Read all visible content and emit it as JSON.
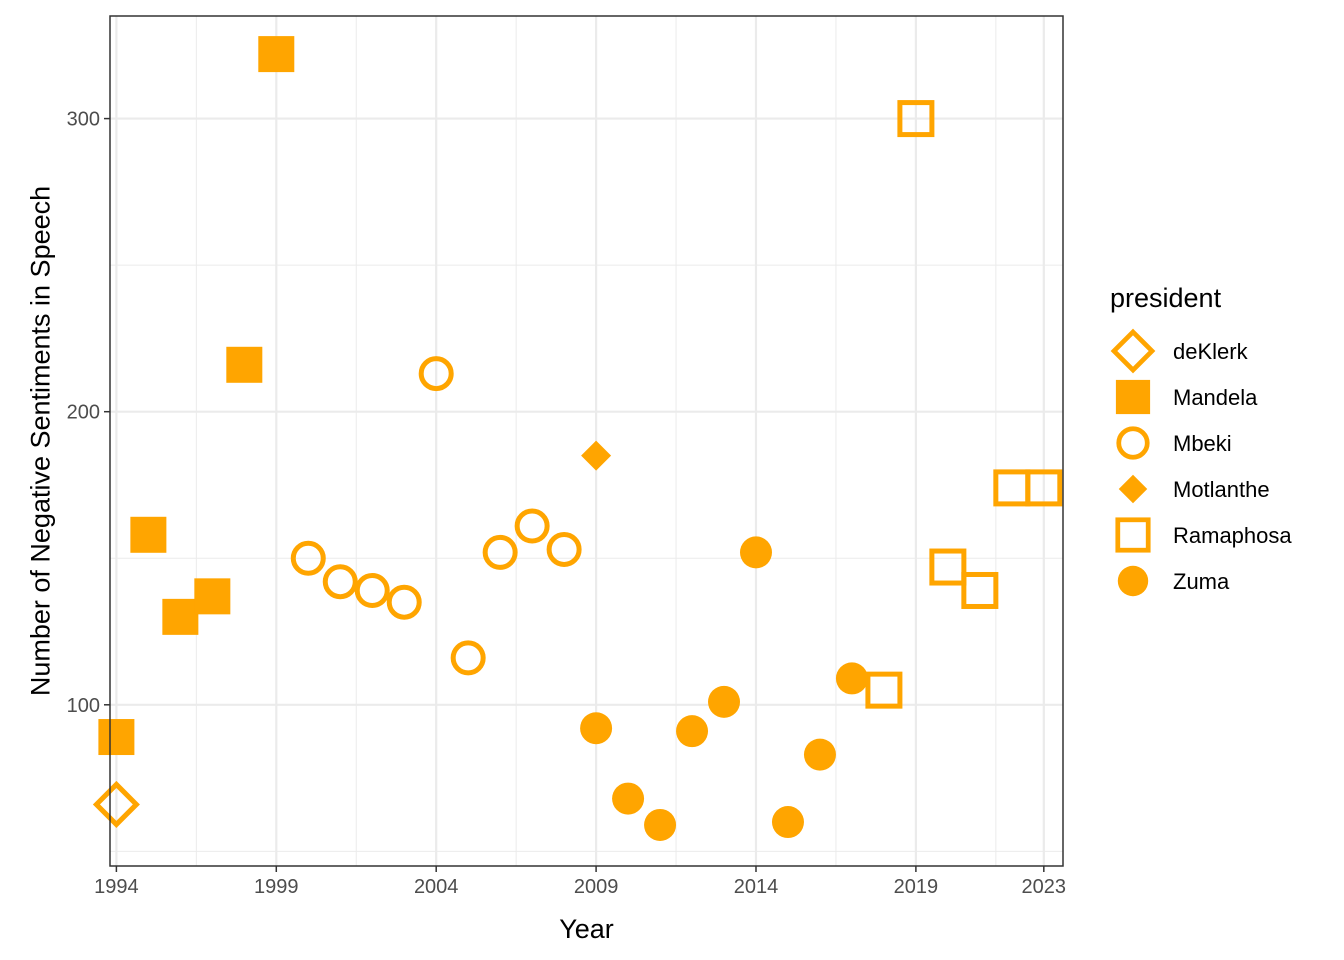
{
  "chart_data": {
    "type": "scatter",
    "xlabel": "Year",
    "ylabel": "Number of Negative Sentiments in Speech",
    "xlim": [
      1993.8,
      2023.6
    ],
    "ylim": [
      45,
      335
    ],
    "x_ticks": [
      1994,
      1999,
      2004,
      2009,
      2014,
      2019,
      2023
    ],
    "y_ticks": [
      100,
      200,
      300
    ],
    "grid": true,
    "marker_color": "#FFA500",
    "legend": {
      "title": "president",
      "placement": "right"
    },
    "series": [
      {
        "name": "deKlerk",
        "shape": "open-diamond",
        "points": [
          [
            1994,
            66
          ]
        ]
      },
      {
        "name": "Mandela",
        "shape": "filled-square",
        "points": [
          [
            1994,
            89
          ],
          [
            1995,
            158
          ],
          [
            1996,
            130
          ],
          [
            1997,
            137
          ],
          [
            1998,
            216
          ],
          [
            1999,
            322
          ]
        ]
      },
      {
        "name": "Mbeki",
        "shape": "open-circle",
        "points": [
          [
            2000,
            150
          ],
          [
            2001,
            142
          ],
          [
            2002,
            139
          ],
          [
            2003,
            135
          ],
          [
            2004,
            213
          ],
          [
            2005,
            116
          ],
          [
            2006,
            152
          ],
          [
            2007,
            161
          ],
          [
            2008,
            153
          ]
        ]
      },
      {
        "name": "Motlanthe",
        "shape": "filled-diamond",
        "points": [
          [
            2009,
            185
          ]
        ]
      },
      {
        "name": "Ramaphosa",
        "shape": "open-square",
        "points": [
          [
            2018,
            105
          ],
          [
            2019,
            300
          ],
          [
            2020,
            147
          ],
          [
            2021,
            139
          ],
          [
            2022,
            174
          ],
          [
            2023,
            174
          ]
        ]
      },
      {
        "name": "Zuma",
        "shape": "filled-circle",
        "points": [
          [
            2009,
            92
          ],
          [
            2010,
            68
          ],
          [
            2011,
            59
          ],
          [
            2012,
            91
          ],
          [
            2013,
            101
          ],
          [
            2014,
            152
          ],
          [
            2015,
            60
          ],
          [
            2016,
            83
          ],
          [
            2017,
            109
          ]
        ]
      }
    ]
  }
}
